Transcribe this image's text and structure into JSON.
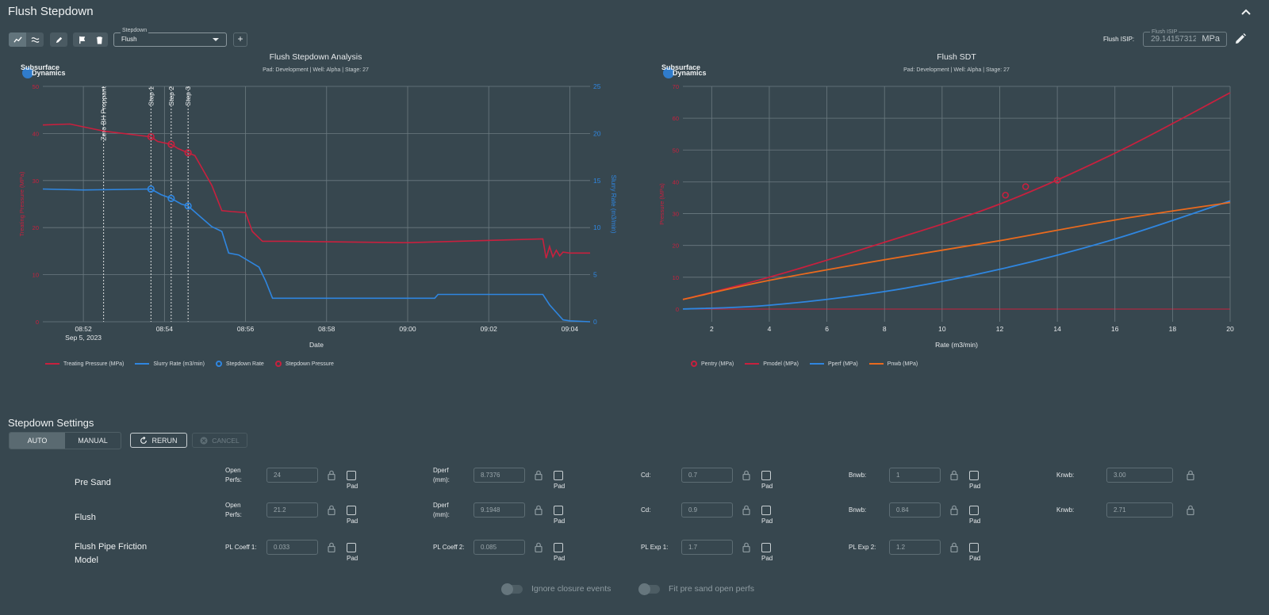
{
  "page_title": "Flush Stepdown",
  "toolbar": {
    "stepdown_select_label": "Stepdown",
    "stepdown_select_value": "Flush",
    "add_label": "+"
  },
  "flush_isip": {
    "label": "Flush ISIP:",
    "field_label": "Flush ISIP",
    "value": "29.14157312",
    "unit": "MPa"
  },
  "colors": {
    "treating_pressure": "#c8203e",
    "slurry_rate": "#2f86e0",
    "pmodel": "#c8203e",
    "pperf": "#2f86e0",
    "pnwb": "#ea6a1e"
  },
  "chart_data": [
    {
      "type": "line",
      "title": "Flush Stepdown Analysis",
      "subtitle": "Pad: Development | Well: Alpha | Stage: 27",
      "logo": "Subsurface Dynamics",
      "xlabel": "Date",
      "x_ticks": [
        "08:52",
        "08:54",
        "08:56",
        "08:58",
        "09:00",
        "09:02",
        "09:04"
      ],
      "x_date_label": "Sep 5, 2023",
      "y_left_label": "Treating Pressure (MPa)",
      "y_left_ticks": [
        0,
        10,
        20,
        30,
        40,
        50
      ],
      "y_left_range": [
        0,
        50
      ],
      "y_right_label": "Slurry Rate (m3/min)",
      "y_right_ticks": [
        0,
        5,
        10,
        15,
        20,
        25
      ],
      "y_right_range": [
        0,
        25
      ],
      "vertical_markers": [
        {
          "label": "Zero BH Proppant",
          "time": "08:52:30"
        },
        {
          "label": "Step 1",
          "time": "08:53:40"
        },
        {
          "label": "Step 2",
          "time": "08:54:10"
        },
        {
          "label": "Step 3",
          "time": "08:54:35"
        }
      ],
      "series": [
        {
          "name": "Treating Pressure (MPa)",
          "axis": "left",
          "x": [
            "08:51:00",
            "08:51:40",
            "08:52:30",
            "08:53:40",
            "08:53:50",
            "08:54:10",
            "08:54:20",
            "08:54:35",
            "08:54:45",
            "08:55:10",
            "08:55:25",
            "08:55:40",
            "08:56:00",
            "08:56:10",
            "08:56:25",
            "08:57:00",
            "09:00:00",
            "09:03:20",
            "09:03:25",
            "09:03:30",
            "09:03:35",
            "09:03:40",
            "09:03:45",
            "09:03:50",
            "09:04:00",
            "09:04:30"
          ],
          "values": [
            41.8,
            42.0,
            40.5,
            39.3,
            38.3,
            37.7,
            36.8,
            35.9,
            35.3,
            29.0,
            23.6,
            23.4,
            23.2,
            19.2,
            17.1,
            17.1,
            16.8,
            17.6,
            13.5,
            16.0,
            13.8,
            15.2,
            14.0,
            14.8,
            14.6,
            14.6
          ]
        },
        {
          "name": "Slurry Rate (m3/min)",
          "axis": "right",
          "x": [
            "08:51:00",
            "08:52:00",
            "08:53:40",
            "08:53:55",
            "08:54:10",
            "08:54:25",
            "08:54:35",
            "08:55:10",
            "08:55:25",
            "08:55:35",
            "08:55:50",
            "08:56:20",
            "08:56:30",
            "08:56:40",
            "09:00:40",
            "09:00:45",
            "09:03:20",
            "09:03:30",
            "09:03:40",
            "09:03:50",
            "09:04:00",
            "09:04:30"
          ],
          "values": [
            14.1,
            14.0,
            14.1,
            13.5,
            13.1,
            12.5,
            12.3,
            10.1,
            9.6,
            7.3,
            7.1,
            5.8,
            4.3,
            2.5,
            2.5,
            2.9,
            2.9,
            1.8,
            1.0,
            0.2,
            0.1,
            0.0
          ]
        }
      ],
      "markers": [
        {
          "name": "Stepdown Rate",
          "x": [
            "08:53:40",
            "08:54:10",
            "08:54:35"
          ],
          "values": [
            14.1,
            13.1,
            12.3
          ],
          "axis": "right"
        },
        {
          "name": "Stepdown Pressure",
          "x": [
            "08:53:40",
            "08:54:10",
            "08:54:35"
          ],
          "values": [
            39.3,
            37.7,
            35.9
          ],
          "axis": "left"
        }
      ],
      "legend": [
        "Treating Pressure (MPa)",
        "Slurry Rate (m3/min)",
        "Stepdown Rate",
        "Stepdown Pressure"
      ],
      "legend_position": "bottom",
      "grid": true
    },
    {
      "type": "line",
      "title": "Flush SDT",
      "subtitle": "Pad: Development | Well: Alpha | Stage: 27",
      "logo": "Subsurface Dynamics",
      "xlabel": "Rate (m3/min)",
      "ylabel": "Pressure (MPa)",
      "x_range": [
        1,
        20
      ],
      "x_ticks": [
        2,
        4,
        6,
        8,
        10,
        12,
        14,
        16,
        18,
        20
      ],
      "y_range": [
        -4,
        70
      ],
      "y_ticks": [
        0,
        10,
        20,
        30,
        40,
        50,
        60,
        70
      ],
      "series": [
        {
          "name": "Pmodel (MPa)",
          "x": [
            1,
            4,
            8,
            12,
            16,
            20
          ],
          "values": [
            3,
            10,
            21,
            33,
            49,
            68
          ]
        },
        {
          "name": "Pperf (MPa)",
          "x": [
            1,
            4,
            8,
            12,
            16,
            20
          ],
          "values": [
            0,
            1.2,
            5.5,
            12.5,
            22,
            34
          ]
        },
        {
          "name": "Pnwb (MPa)",
          "x": [
            1,
            4,
            8,
            12,
            16,
            20
          ],
          "values": [
            3,
            9,
            15.5,
            21.5,
            28,
            33.5
          ]
        }
      ],
      "markers": [
        {
          "name": "Pentry (MPa)",
          "x": [
            12.2,
            12.9,
            14.0
          ],
          "values": [
            35.8,
            38.5,
            40.5
          ]
        }
      ],
      "legend": [
        "Pentry (MPa)",
        "Pmodel (MPa)",
        "Pperf (MPa)",
        "Pnwb (MPa)"
      ],
      "legend_position": "bottom",
      "grid": true
    }
  ],
  "settings": {
    "title": "Stepdown Settings",
    "mode_auto": "AUTO",
    "mode_manual": "MANUAL",
    "rerun": "RERUN",
    "cancel": "CANCEL",
    "pad_label": "Pad",
    "rows": [
      {
        "label": "Pre Sand",
        "f1_label_a": "Open",
        "f1_label_b": "Perfs:",
        "f1_value": "24",
        "f2_label_a": "Dperf",
        "f2_label_b": "(mm):",
        "f2_value": "8.7376",
        "f3_label": "Cd:",
        "f3_value": "0.7",
        "f4_label": "Bnwb:",
        "f4_value": "1",
        "f5_label": "Knwb:",
        "f5_value": "3.00"
      },
      {
        "label": "Flush",
        "f1_label_a": "Open",
        "f1_label_b": "Perfs:",
        "f1_value": "21.2",
        "f2_label_a": "Dperf",
        "f2_label_b": "(mm):",
        "f2_value": "9.1948",
        "f3_label": "Cd:",
        "f3_value": "0.9",
        "f4_label": "Bnwb:",
        "f4_value": "0.84",
        "f5_label": "Knwb:",
        "f5_value": "2.71"
      },
      {
        "label_a": "Flush Pipe Friction",
        "label_b": "Model",
        "f1_label": "PL Coeff 1:",
        "f1_value": "0.033",
        "f2_label": "PL Coeff 2:",
        "f2_value": "0.085",
        "f3_label": "PL Exp 1:",
        "f3_value": "1.7",
        "f4_label": "PL Exp 2:",
        "f4_value": "1.2"
      }
    ],
    "switch_ignore": "Ignore closure events",
    "switch_fit": "Fit pre sand open perfs"
  }
}
